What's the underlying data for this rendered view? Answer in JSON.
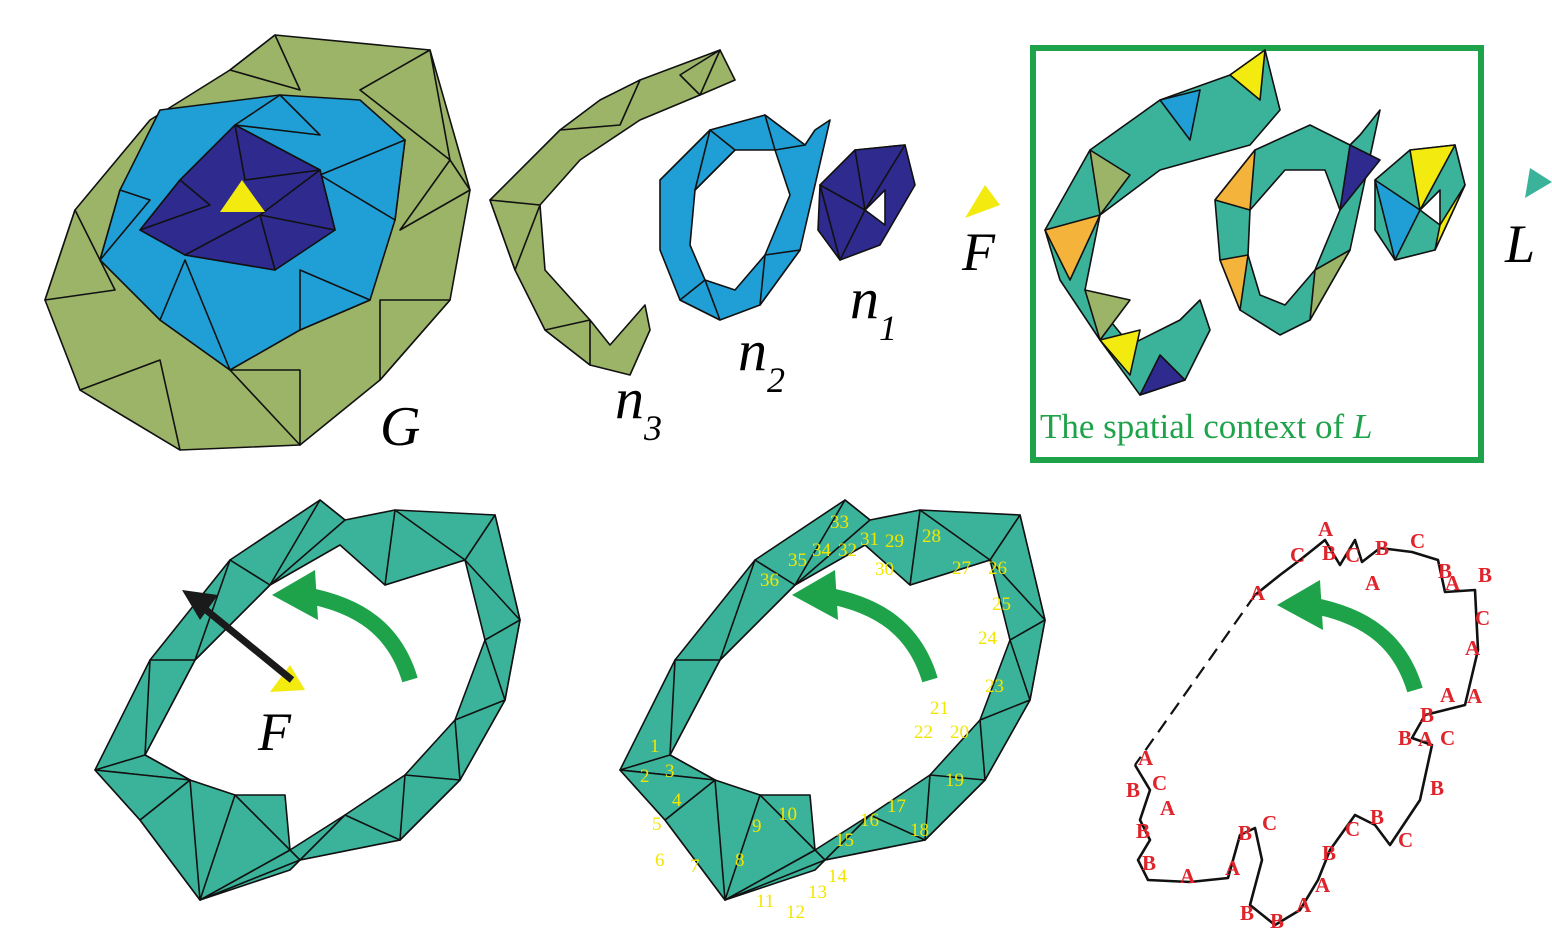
{
  "colors": {
    "olive": "#9bb467",
    "blue": "#1f9fd6",
    "navy": "#2e2a8e",
    "yellow": "#f3ea10",
    "teal": "#3bb39a",
    "orange": "#f4b43c",
    "frame_green": "#1fa34a",
    "arrow_green": "#1fa34a",
    "label_red": "#e0242c",
    "number_yellow": "#f2e600"
  },
  "top_row": {
    "panel_g": {
      "label": "G"
    },
    "panel_rings": {
      "n1": "n",
      "n1_sub": "1",
      "n2": "n",
      "n2_sub": "2",
      "n3": "n",
      "n3_sub": "3"
    },
    "facet_f": {
      "label": "F"
    },
    "panel_context": {
      "caption_prefix": "The spatial context of ",
      "caption_var": "L"
    },
    "facet_l": {
      "label": "L"
    }
  },
  "bottom_row": {
    "panel_direction": {
      "label": "F",
      "arrow_icon": "black-direction-arrow",
      "turn_icon": "green-curved-arrow"
    },
    "panel_numbered": {
      "numbers": [
        "1",
        "2",
        "3",
        "4",
        "5",
        "6",
        "7",
        "8",
        "9",
        "10",
        "11",
        "12",
        "13",
        "14",
        "15",
        "16",
        "17",
        "18",
        "19",
        "20",
        "21",
        "22",
        "23",
        "24",
        "25",
        "26",
        "27",
        "28",
        "29",
        "30",
        "31",
        "32",
        "33",
        "34",
        "35",
        "36"
      ]
    },
    "panel_labels": {
      "labels": [
        "A",
        "B",
        "C",
        "A",
        "B",
        "B",
        "A",
        "A",
        "B",
        "C",
        "B",
        "B",
        "A",
        "A",
        "B",
        "C",
        "B",
        "C",
        "B",
        "A",
        "A",
        "B",
        "B",
        "C",
        "A",
        "A",
        "C",
        "B",
        "A",
        "B",
        "C",
        "A",
        "B",
        "C",
        "A",
        "B",
        "C",
        "A"
      ]
    }
  }
}
